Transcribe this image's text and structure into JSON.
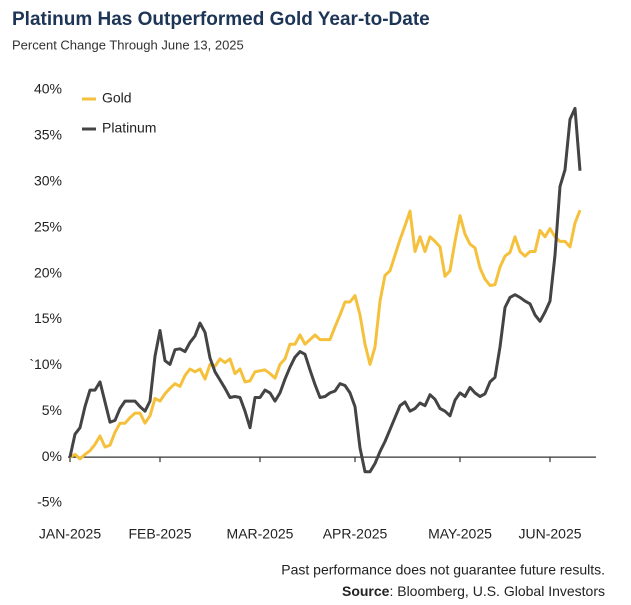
{
  "chart_data": {
    "type": "line",
    "title": "Platinum Has Outperformed Gold Year-to-Date",
    "subtitle": "Percent Change Through June 13, 2025",
    "footnote": "Past performance does not guarantee future results.",
    "source_label": "Source",
    "source_text": ": Bloomberg, U.S. Global Investors",
    "x": [
      0,
      1,
      2,
      3,
      4,
      5,
      6,
      7,
      8,
      9,
      10,
      11,
      12,
      13,
      14,
      15,
      16,
      17,
      18,
      19,
      20,
      21,
      22,
      23,
      24,
      25,
      26,
      27,
      28,
      29,
      30,
      31,
      32,
      33,
      34,
      35,
      36,
      37,
      38,
      39,
      40,
      41,
      42,
      43,
      44,
      45,
      46,
      47,
      48,
      49,
      50,
      51,
      52,
      53,
      54,
      55,
      56,
      57,
      58,
      59,
      60,
      61,
      62,
      63,
      64,
      65,
      66,
      67,
      68,
      69,
      70,
      71,
      72,
      73,
      74,
      75,
      76,
      77,
      78,
      79,
      80,
      81,
      82,
      83,
      84,
      85,
      86,
      87,
      88,
      89,
      90,
      91,
      92,
      93,
      94,
      95,
      96,
      97,
      98,
      99,
      100,
      101,
      102
    ],
    "xlim": [
      0,
      102
    ],
    "xticks": [
      {
        "value": 0,
        "label": "JAN-2025"
      },
      {
        "value": 18,
        "label": "FEB-2025"
      },
      {
        "value": 38,
        "label": "MAR-2025"
      },
      {
        "value": 57,
        "label": "APR-2025"
      },
      {
        "value": 78,
        "label": "MAY-2025"
      },
      {
        "value": 96,
        "label": "JUN-2025"
      }
    ],
    "ylim": [
      -5,
      40
    ],
    "yticks": [
      {
        "value": -5,
        "label": "-5%"
      },
      {
        "value": 0,
        "label": "0%"
      },
      {
        "value": 5,
        "label": "5%"
      },
      {
        "value": 10,
        "label": "`10%"
      },
      {
        "value": 15,
        "label": "15%"
      },
      {
        "value": 20,
        "label": "20%"
      },
      {
        "value": 25,
        "label": "25%"
      },
      {
        "value": 30,
        "label": "30%"
      },
      {
        "value": 35,
        "label": "35%"
      },
      {
        "value": 40,
        "label": "40%"
      }
    ],
    "legend": "upper-left",
    "series": [
      {
        "name": "Gold",
        "color": "#f5c13c",
        "values": [
          0,
          0.3,
          -0.2,
          0.3,
          0.7,
          1.4,
          2.3,
          1.1,
          1.3,
          2.7,
          3.7,
          3.7,
          4.3,
          4.8,
          4.8,
          3.7,
          4.5,
          6.4,
          6.1,
          6.9,
          7.5,
          8.0,
          7.7,
          8.9,
          9.6,
          9.3,
          9.6,
          8.5,
          10.1,
          9.9,
          10.7,
          10.3,
          10.7,
          9.1,
          9.6,
          8.2,
          8.3,
          9.3,
          9.4,
          9.5,
          9.1,
          8.6,
          10.1,
          10.7,
          12.3,
          12.3,
          13.3,
          12.3,
          12.8,
          13.3,
          12.8,
          12.8,
          12.8,
          14.2,
          15.5,
          16.9,
          16.9,
          17.6,
          15.5,
          12.3,
          10.1,
          12.0,
          17.0,
          19.8,
          20.3,
          22.0,
          23.7,
          25.2,
          26.8,
          22.4,
          24.0,
          22.4,
          24.0,
          23.5,
          22.9,
          19.7,
          20.3,
          23.5,
          26.3,
          24.3,
          23.2,
          22.8,
          20.6,
          19.4,
          18.7,
          18.8,
          20.7,
          21.9,
          22.3,
          24.0,
          22.4,
          21.9,
          22.4,
          22.4,
          24.7,
          24.0,
          24.9,
          24.0,
          23.5,
          23.5,
          22.9,
          25.5,
          26.9
        ]
      },
      {
        "name": "Platinum",
        "color": "#444444",
        "values": [
          0,
          2.5,
          3.2,
          5.5,
          7.3,
          7.3,
          8.2,
          6.0,
          3.8,
          4.0,
          5.3,
          6.1,
          6.1,
          6.1,
          5.5,
          5.0,
          6.1,
          11.0,
          13.8,
          10.5,
          10.1,
          11.7,
          11.8,
          11.5,
          12.5,
          13.2,
          14.6,
          13.6,
          10.8,
          9.3,
          8.4,
          7.5,
          6.5,
          6.6,
          6.5,
          5.0,
          3.2,
          6.5,
          6.5,
          7.3,
          7.0,
          6.1,
          7.0,
          8.5,
          9.8,
          10.9,
          11.5,
          11.2,
          9.5,
          7.9,
          6.5,
          6.6,
          7.0,
          7.2,
          8.0,
          7.8,
          7.0,
          5.5,
          1.0,
          -1.6,
          -1.6,
          -0.7,
          0.6,
          1.7,
          3.0,
          4.3,
          5.6,
          6.0,
          5.0,
          5.3,
          5.9,
          5.6,
          6.8,
          6.3,
          5.3,
          5.0,
          4.5,
          6.2,
          7.0,
          6.6,
          7.6,
          7.0,
          6.6,
          6.9,
          8.2,
          8.7,
          12.0,
          16.3,
          17.4,
          17.7,
          17.4,
          17.0,
          16.7,
          15.5,
          14.8,
          15.8,
          17.0,
          22.0,
          29.5,
          31.3,
          36.8,
          38.0,
          31.2
        ]
      }
    ]
  }
}
